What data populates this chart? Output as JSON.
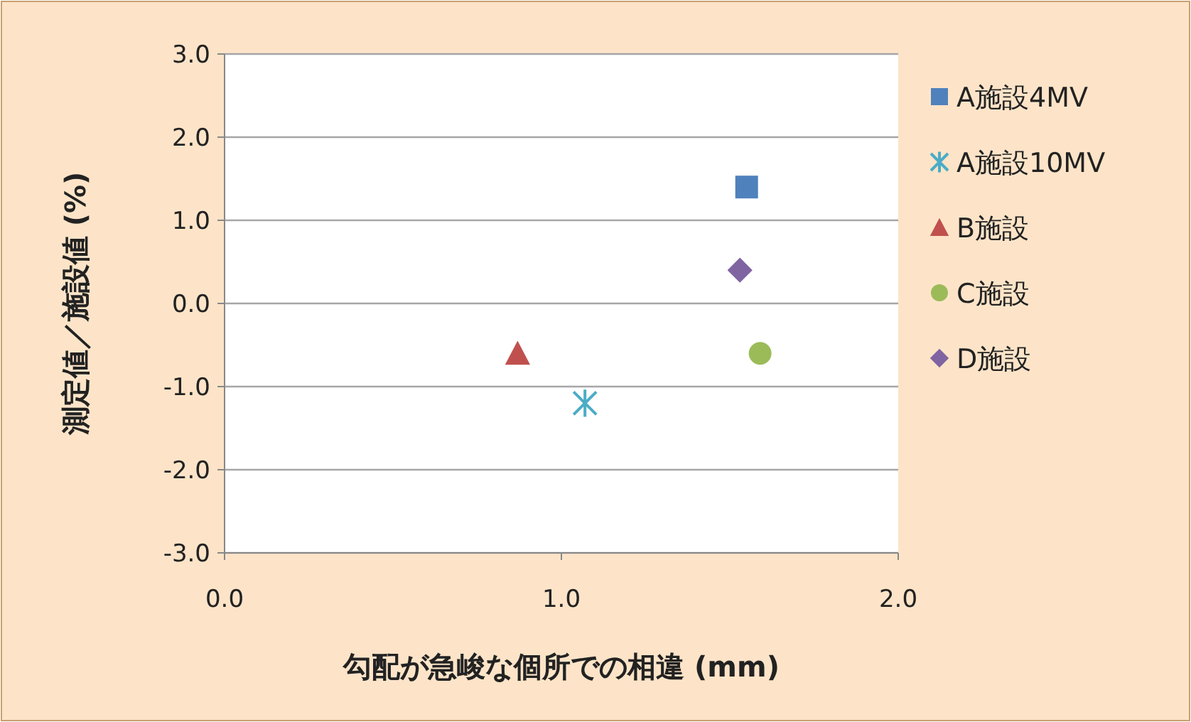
{
  "chart_data": {
    "type": "scatter",
    "xlabel": "勾配が急峻な個所での相違 (mm)",
    "ylabel": "測定値／施設値 (%)",
    "xlim": [
      0,
      2
    ],
    "xticks": [
      {
        "value": 0,
        "label": "0.0"
      },
      {
        "value": 1,
        "label": "1.0"
      },
      {
        "value": 2,
        "label": "2.0"
      }
    ],
    "ylim": [
      -3,
      3
    ],
    "yticks": [
      {
        "value": -3,
        "label": "-3.0"
      },
      {
        "value": -2,
        "label": "-2.0"
      },
      {
        "value": -1,
        "label": "-1.0"
      },
      {
        "value": 0,
        "label": "0.0"
      },
      {
        "value": 1,
        "label": "1.0"
      },
      {
        "value": 2,
        "label": "2.0"
      },
      {
        "value": 3,
        "label": "3.0"
      }
    ],
    "grid": "y",
    "legend": "right",
    "series": [
      {
        "name": "A施設4MV",
        "color": "#4f81bd",
        "marker": "square",
        "x": [
          1.55
        ],
        "values": [
          1.4
        ]
      },
      {
        "name": "A施設10MV",
        "color": "#4bacc6",
        "marker": "cross",
        "x": [
          1.07
        ],
        "values": [
          -1.2
        ]
      },
      {
        "name": "B施設",
        "color": "#c0504d",
        "marker": "triangle",
        "x": [
          0.87
        ],
        "values": [
          -0.6
        ]
      },
      {
        "name": "C施設",
        "color": "#9bbb59",
        "marker": "circle",
        "x": [
          1.59
        ],
        "values": [
          -0.6
        ]
      },
      {
        "name": "D施設",
        "color": "#8064a2",
        "marker": "diamond",
        "x": [
          1.53
        ],
        "values": [
          0.4
        ]
      }
    ]
  }
}
